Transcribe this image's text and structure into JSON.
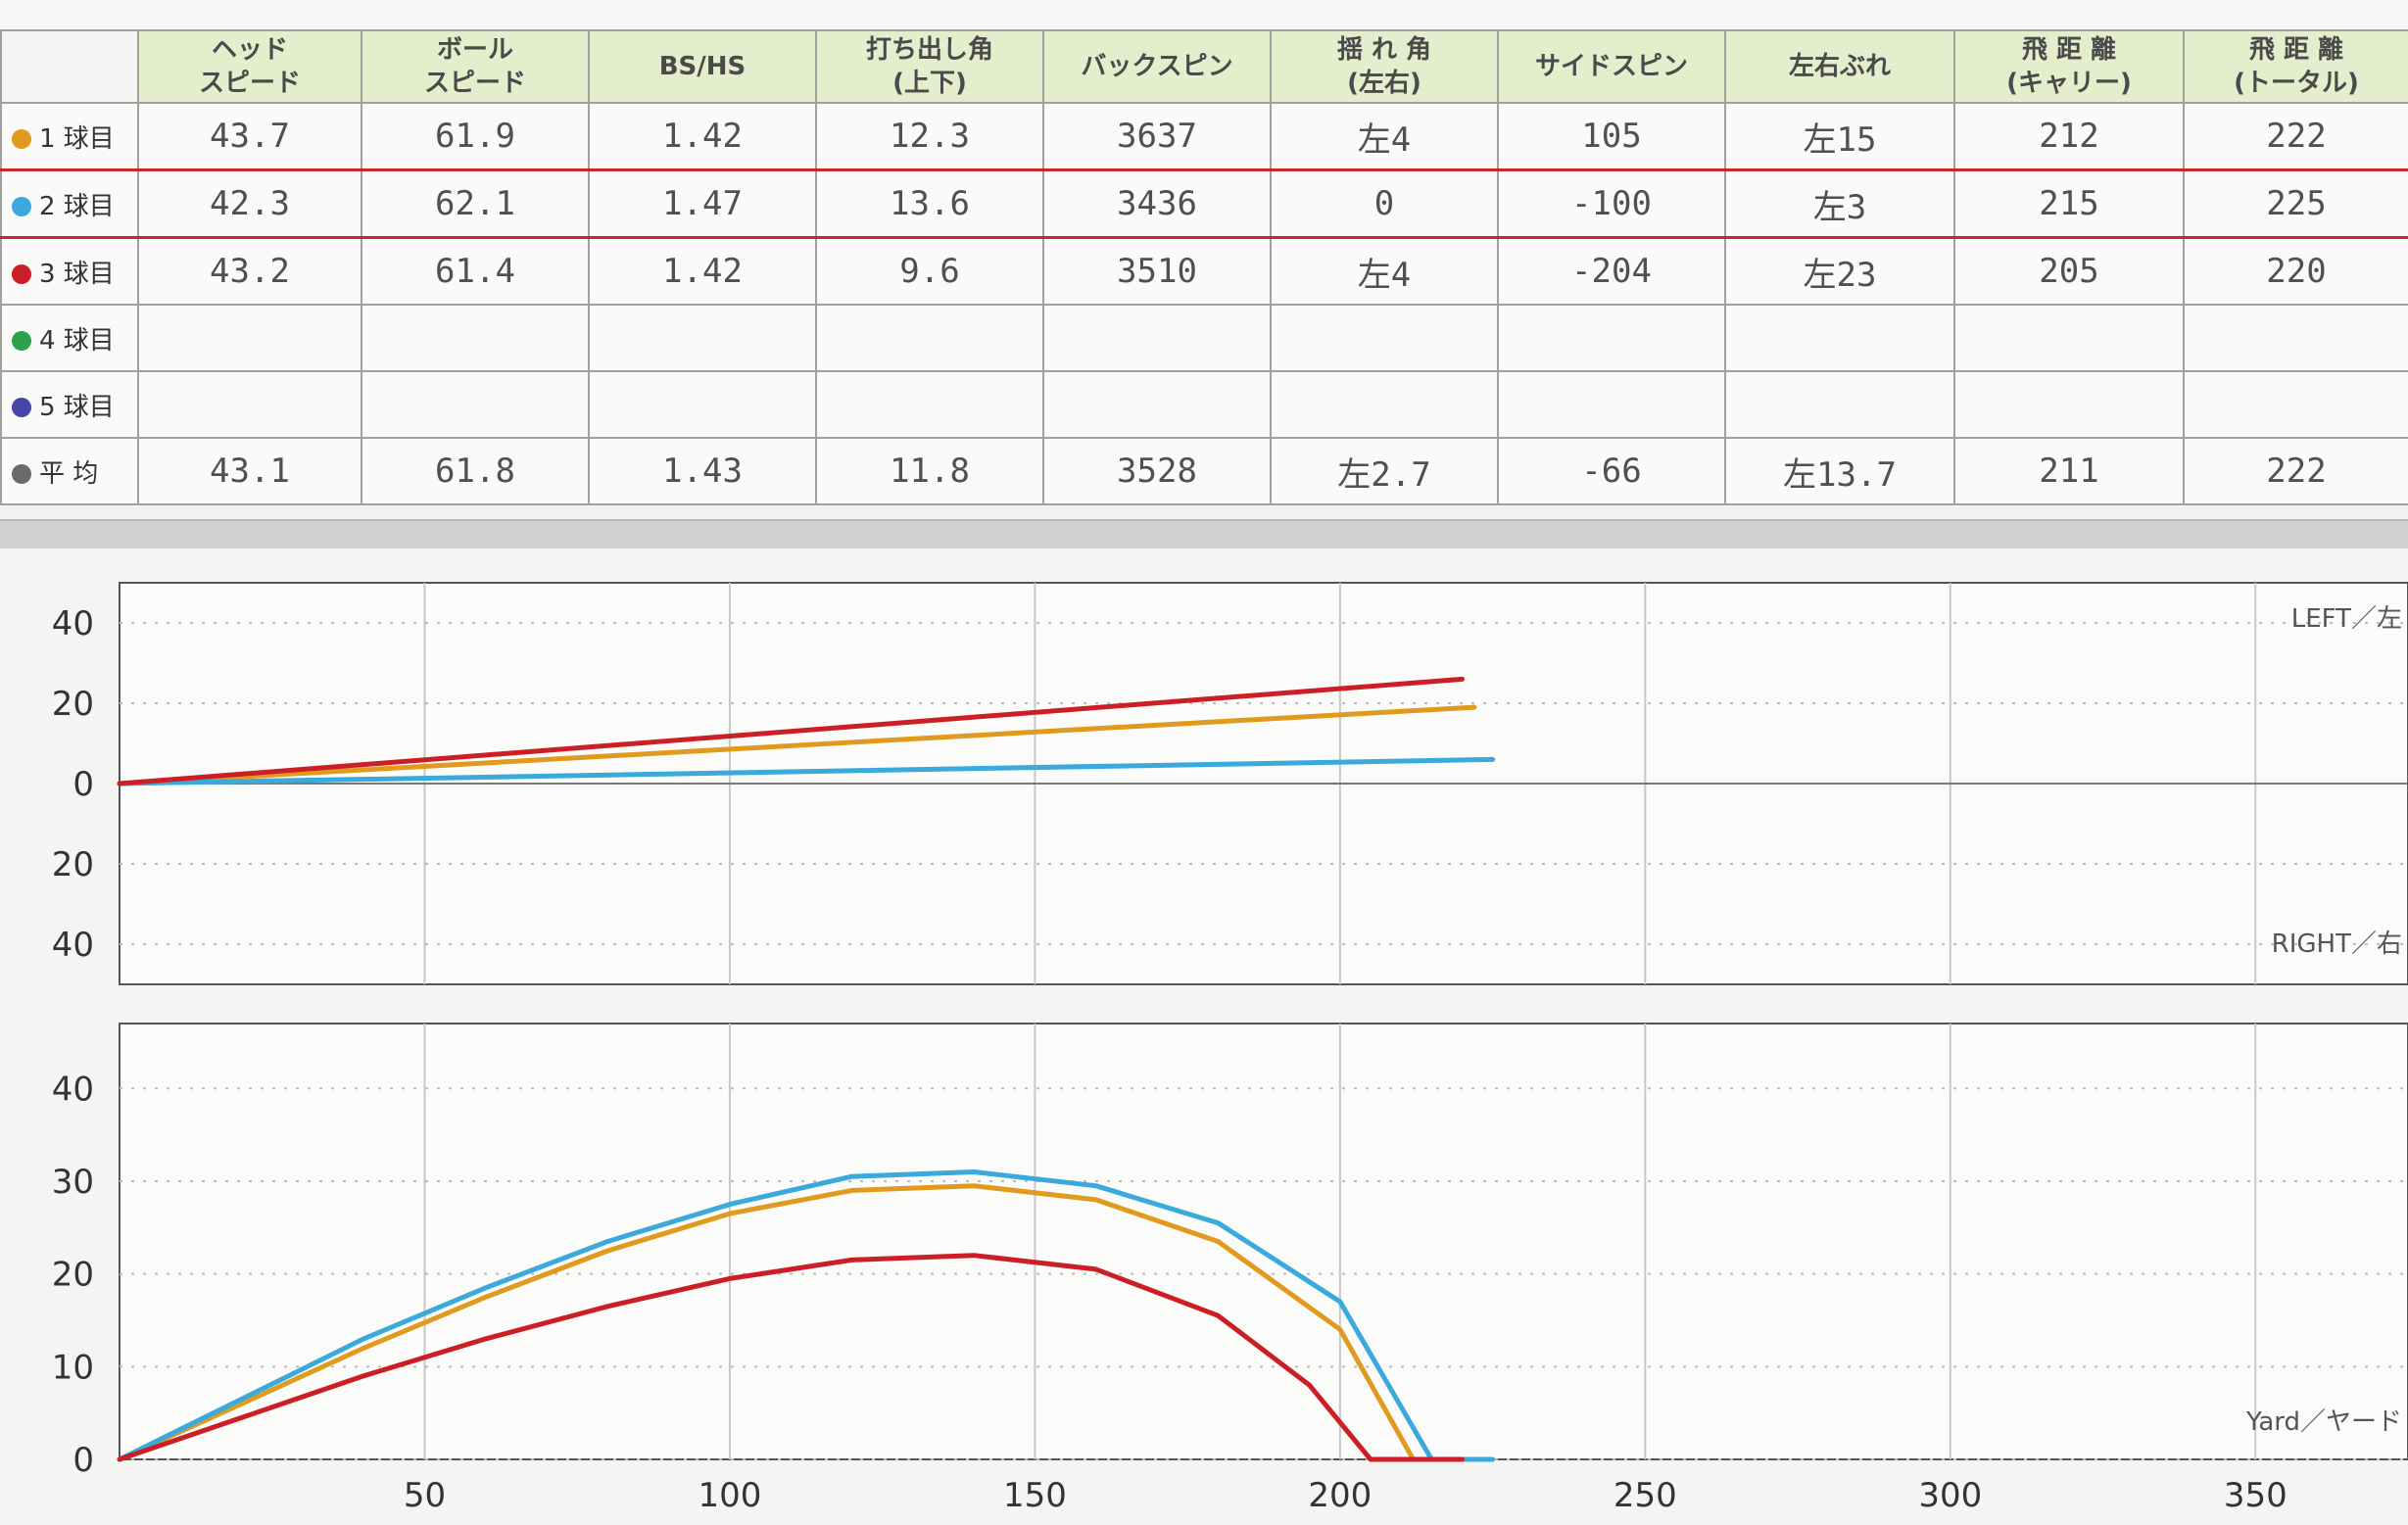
{
  "table": {
    "headers": [
      {
        "line1": "ヘッド",
        "line2": "スピード"
      },
      {
        "line1": "ボール",
        "line2": "スピード"
      },
      {
        "line1": "BS/HS",
        "line2": ""
      },
      {
        "line1": "打ち出し角",
        "line2": "(上下)"
      },
      {
        "line1": "バックスピン",
        "line2": ""
      },
      {
        "line1": "揺 れ 角",
        "line2": "(左右)"
      },
      {
        "line1": "サイドスピン",
        "line2": ""
      },
      {
        "line1": "左右ぶれ",
        "line2": ""
      },
      {
        "line1": "飛 距 離",
        "line2": "(キャリー)"
      },
      {
        "line1": "飛 距 離",
        "line2": "(トータル)"
      }
    ],
    "rows": [
      {
        "label": "1 球目",
        "color": "#e09a1e",
        "cells": [
          "43.7",
          "61.9",
          "1.42",
          "12.3",
          "3637",
          "左4",
          "105",
          "左15",
          "212",
          "222"
        ]
      },
      {
        "label": "2 球目",
        "color": "#3aa9dc",
        "cells": [
          "42.3",
          "62.1",
          "1.47",
          "13.6",
          "3436",
          "0",
          "-100",
          "左3",
          "215",
          "225"
        ]
      },
      {
        "label": "3 球目",
        "color": "#cc1f25",
        "cells": [
          "43.2",
          "61.4",
          "1.42",
          "9.6",
          "3510",
          "左4",
          "-204",
          "左23",
          "205",
          "220"
        ]
      },
      {
        "label": "4 球目",
        "color": "#2ea24a",
        "cells": [
          "",
          "",
          "",
          "",
          "",
          "",
          "",
          "",
          "",
          ""
        ]
      },
      {
        "label": "5 球目",
        "color": "#4646a8",
        "cells": [
          "",
          "",
          "",
          "",
          "",
          "",
          "",
          "",
          "",
          ""
        ]
      },
      {
        "label": "平 均",
        "color": "#6b6b6b",
        "cells": [
          "43.1",
          "61.8",
          "1.43",
          "11.8",
          "3528",
          "左2.7",
          "-66",
          "左13.7",
          "211",
          "222"
        ]
      }
    ]
  },
  "chart_data": [
    {
      "type": "line",
      "name": "top-view",
      "xlabel": "",
      "ylabel": "",
      "xlim": [
        0,
        375
      ],
      "ylim": [
        -50,
        50
      ],
      "x_grid": [
        50,
        100,
        150,
        200,
        250,
        300,
        350
      ],
      "y_tick_values": [
        40,
        20,
        0,
        -20,
        -40
      ],
      "y_tick_labels": [
        "40",
        "20",
        "0",
        "20",
        "40"
      ],
      "corner_labels": {
        "top_right": "LEFT／左",
        "bottom_right": "RIGHT／右"
      },
      "series": [
        {
          "color": "#e09a1e",
          "x": [
            0,
            222
          ],
          "y": [
            0,
            19
          ]
        },
        {
          "color": "#3aa9dc",
          "x": [
            0,
            225
          ],
          "y": [
            0,
            6
          ]
        },
        {
          "color": "#cc1f25",
          "x": [
            0,
            220
          ],
          "y": [
            0,
            26
          ]
        }
      ]
    },
    {
      "type": "line",
      "name": "side-view",
      "xlabel": "Yard／ヤード",
      "ylabel": "",
      "xlim": [
        0,
        375
      ],
      "ylim": [
        0,
        47
      ],
      "x_ticks": [
        50,
        100,
        150,
        200,
        250,
        300,
        350
      ],
      "y_ticks": [
        0,
        10,
        20,
        30,
        40
      ],
      "series": [
        {
          "color": "#e09a1e",
          "x": [
            0,
            20,
            40,
            60,
            80,
            100,
            120,
            140,
            160,
            180,
            200,
            212,
            222
          ],
          "y": [
            0,
            6,
            12,
            17.5,
            22.5,
            26.5,
            29,
            29.5,
            28,
            23.5,
            14,
            0,
            0
          ]
        },
        {
          "color": "#3aa9dc",
          "x": [
            0,
            20,
            40,
            60,
            80,
            100,
            120,
            140,
            160,
            180,
            200,
            215,
            225
          ],
          "y": [
            0,
            6.5,
            13,
            18.5,
            23.5,
            27.5,
            30.5,
            31,
            29.5,
            25.5,
            17,
            0,
            0
          ]
        },
        {
          "color": "#cc1f25",
          "x": [
            0,
            20,
            40,
            60,
            80,
            100,
            120,
            140,
            160,
            180,
            195,
            205,
            220
          ],
          "y": [
            0,
            4.5,
            9,
            13,
            16.5,
            19.5,
            21.5,
            22,
            20.5,
            15.5,
            8,
            0,
            0
          ]
        }
      ]
    }
  ]
}
